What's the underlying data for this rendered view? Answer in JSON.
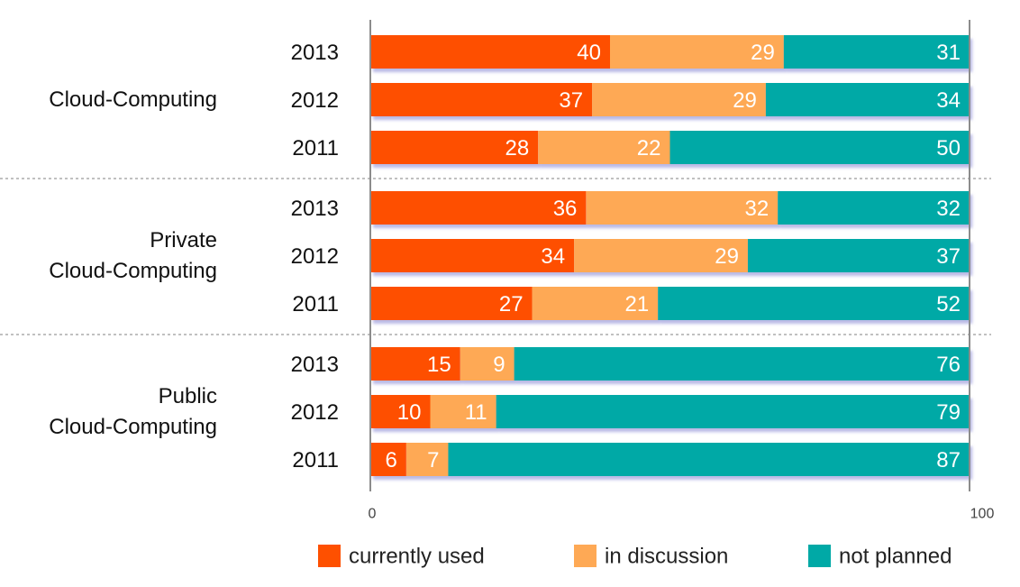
{
  "chart_data": {
    "type": "bar",
    "orientation": "horizontal",
    "stacked": true,
    "xlim": [
      0,
      100
    ],
    "x_ticks": [
      "0",
      "100"
    ],
    "grid": false,
    "legend_position": "bottom",
    "series": [
      {
        "name": "currently used",
        "color": "#fe5000"
      },
      {
        "name": "in discussion",
        "color": "#fea955"
      },
      {
        "name": "not planned",
        "color": "#00a9a6"
      }
    ],
    "groups": [
      {
        "label": [
          "Cloud-Computing"
        ],
        "rows": [
          {
            "year": "2013",
            "values": [
              40,
              29,
              31
            ]
          },
          {
            "year": "2012",
            "values": [
              37,
              29,
              34
            ]
          },
          {
            "year": "2011",
            "values": [
              28,
              22,
              50
            ]
          }
        ]
      },
      {
        "label": [
          "Private",
          "Cloud-Computing"
        ],
        "rows": [
          {
            "year": "2013",
            "values": [
              36,
              32,
              32
            ]
          },
          {
            "year": "2012",
            "values": [
              34,
              29,
              37
            ]
          },
          {
            "year": "2011",
            "values": [
              27,
              21,
              52
            ]
          }
        ]
      },
      {
        "label": [
          "Public",
          "Cloud-Computing"
        ],
        "rows": [
          {
            "year": "2013",
            "values": [
              15,
              9,
              76
            ]
          },
          {
            "year": "2012",
            "values": [
              10,
              11,
              79
            ]
          },
          {
            "year": "2011",
            "values": [
              6,
              7,
              87
            ]
          }
        ]
      }
    ]
  }
}
